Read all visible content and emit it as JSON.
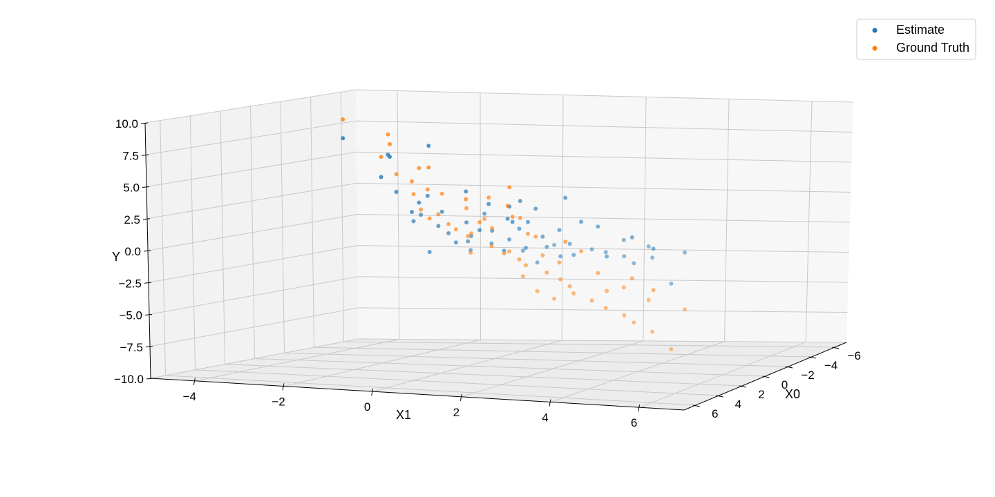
{
  "chart_data": {
    "type": "scatter",
    "projection": "3d",
    "title": "",
    "xlabel": "X0",
    "ylabel": "X1",
    "zlabel": "Y",
    "xlim": [
      -7,
      7
    ],
    "ylim": [
      -5,
      7
    ],
    "zlim": [
      -10,
      10
    ],
    "xticks": [
      "−6",
      "−4",
      "−2",
      "0",
      "2",
      "4",
      "6"
    ],
    "yticks": [
      "−4",
      "−2",
      "0",
      "2",
      "4",
      "6"
    ],
    "zticks": [
      "−10.0",
      "−7.5",
      "−5.0",
      "−2.5",
      "0.0",
      "2.5",
      "5.0",
      "7.5",
      "10.0"
    ],
    "grid": true,
    "legend_position": "top-right",
    "series": [
      {
        "name": "Estimate",
        "color": "#1f77b4",
        "points": [
          [
            -3.7,
            -4.2,
            6.8
          ],
          [
            -3.2,
            -2.9,
            5.5
          ],
          [
            -2.6,
            -2.9,
            4.0
          ],
          [
            -1.6,
            -2.4,
            6.0
          ],
          [
            -1.8,
            -1.5,
            6.7
          ],
          [
            -1.0,
            -2.0,
            3.2
          ],
          [
            -1.2,
            -1.7,
            1.6
          ],
          [
            -0.5,
            -1.3,
            2.5
          ],
          [
            -0.2,
            -1.0,
            3.1
          ],
          [
            0.2,
            -1.2,
            1.2
          ],
          [
            0.6,
            -0.9,
            1.8
          ],
          [
            0.3,
            -0.5,
            2.0
          ],
          [
            0.9,
            -0.6,
            -1.0
          ],
          [
            -0.2,
            -0.1,
            3.5
          ],
          [
            1.2,
            -0.3,
            1.1
          ],
          [
            1.4,
            0.0,
            0.6
          ],
          [
            0.7,
            0.2,
            1.3
          ],
          [
            1.8,
            0.3,
            0.0
          ],
          [
            1.0,
            0.6,
            0.8
          ],
          [
            2.2,
            0.7,
            0.2
          ],
          [
            1.6,
            0.9,
            2.2
          ],
          [
            2.0,
            1.2,
            1.0
          ],
          [
            2.7,
            1.4,
            0.2
          ],
          [
            2.4,
            1.6,
            -0.4
          ],
          [
            3.0,
            1.9,
            0.6
          ],
          [
            1.5,
            1.7,
            3.2
          ],
          [
            2.9,
            2.1,
            1.4
          ],
          [
            2.3,
            2.3,
            2.8
          ],
          [
            3.4,
            2.4,
            0.1
          ],
          [
            3.1,
            2.7,
            0.9
          ],
          [
            3.8,
            3.0,
            0.3
          ],
          [
            3.5,
            3.2,
            1.5
          ],
          [
            4.1,
            3.4,
            -0.3
          ],
          [
            2.0,
            2.9,
            3.6
          ],
          [
            4.4,
            3.7,
            0.7
          ],
          [
            4.8,
            3.9,
            0.0
          ],
          [
            3.9,
            4.2,
            1.9
          ],
          [
            5.1,
            4.4,
            0.5
          ],
          [
            4.6,
            4.6,
            -0.1
          ],
          [
            5.4,
            4.8,
            0.4
          ],
          [
            5.0,
            5.1,
            1.2
          ],
          [
            5.7,
            5.3,
            0.2
          ],
          [
            6.0,
            5.6,
            -0.2
          ],
          [
            5.5,
            5.8,
            0.9
          ],
          [
            6.3,
            6.1,
            0.3
          ],
          [
            6.2,
            6.5,
            -1.5
          ],
          [
            5.8,
            6.7,
            0.6
          ],
          [
            0.0,
            0.5,
            2.6
          ],
          [
            0.5,
            1.1,
            1.6
          ],
          [
            -0.6,
            0.8,
            2.3
          ],
          [
            1.1,
            1.4,
            1.5
          ],
          [
            2.6,
            0.9,
            0.7
          ],
          [
            3.3,
            1.1,
            -0.2
          ],
          [
            1.9,
            2.0,
            1.7
          ],
          [
            4.3,
            2.6,
            0.1
          ],
          [
            2.8,
            3.5,
            2.0
          ],
          [
            4.9,
            3.1,
            -0.6
          ],
          [
            3.6,
            4.9,
            1.1
          ],
          [
            5.3,
            3.6,
            0.8
          ],
          [
            4.0,
            5.5,
            0.4
          ]
        ]
      },
      {
        "name": "Ground Truth",
        "color": "#ff7f0e",
        "points": [
          [
            -3.7,
            -4.2,
            8.3
          ],
          [
            -3.2,
            -2.9,
            6.5
          ],
          [
            -2.6,
            -2.9,
            5.6
          ],
          [
            -1.6,
            -2.4,
            7.6
          ],
          [
            -1.8,
            -1.5,
            5.0
          ],
          [
            -1.0,
            -2.0,
            4.6
          ],
          [
            -1.2,
            -1.7,
            4.0
          ],
          [
            -0.5,
            -1.3,
            5.2
          ],
          [
            -0.2,
            -1.0,
            3.6
          ],
          [
            0.2,
            -1.2,
            3.3
          ],
          [
            0.6,
            -0.9,
            2.2
          ],
          [
            0.3,
            -0.5,
            3.4
          ],
          [
            0.9,
            -0.6,
            1.6
          ],
          [
            -0.2,
            -0.1,
            2.9
          ],
          [
            1.2,
            -0.3,
            2.0
          ],
          [
            1.4,
            0.0,
            1.3
          ],
          [
            0.7,
            0.2,
            2.4
          ],
          [
            1.8,
            0.3,
            1.0
          ],
          [
            1.0,
            0.6,
            1.4
          ],
          [
            2.2,
            0.7,
            0.6
          ],
          [
            1.6,
            0.9,
            1.8
          ],
          [
            2.0,
            1.2,
            1.2
          ],
          [
            2.7,
            1.4,
            0.0
          ],
          [
            2.4,
            1.6,
            -0.6
          ],
          [
            3.0,
            1.9,
            -0.3
          ],
          [
            1.5,
            1.7,
            1.9
          ],
          [
            2.9,
            2.1,
            -0.9
          ],
          [
            2.3,
            2.3,
            0.7
          ],
          [
            3.4,
            2.4,
            -1.2
          ],
          [
            3.1,
            2.7,
            -0.5
          ],
          [
            3.8,
            3.0,
            -1.6
          ],
          [
            3.5,
            3.2,
            -0.9
          ],
          [
            4.1,
            3.4,
            -2.0
          ],
          [
            2.0,
            2.9,
            0.3
          ],
          [
            4.4,
            3.7,
            -2.4
          ],
          [
            4.8,
            3.9,
            -2.8
          ],
          [
            3.9,
            4.2,
            -1.5
          ],
          [
            5.1,
            4.4,
            -3.2
          ],
          [
            4.6,
            4.6,
            -2.6
          ],
          [
            5.4,
            4.8,
            -3.6
          ],
          [
            5.0,
            5.1,
            -2.2
          ],
          [
            5.7,
            5.3,
            -4.0
          ],
          [
            6.0,
            5.6,
            -4.4
          ],
          [
            5.5,
            5.8,
            -2.9
          ],
          [
            6.3,
            6.1,
            -4.9
          ],
          [
            6.2,
            6.5,
            -6.1
          ],
          [
            5.8,
            6.7,
            -3.4
          ],
          [
            0.0,
            0.5,
            3.1
          ],
          [
            0.5,
            1.1,
            2.6
          ],
          [
            -0.6,
            0.8,
            3.8
          ],
          [
            1.1,
            1.4,
            1.9
          ],
          [
            2.6,
            0.9,
            0.9
          ],
          [
            3.3,
            1.1,
            -0.4
          ],
          [
            1.9,
            2.0,
            0.8
          ],
          [
            4.3,
            2.6,
            -1.8
          ],
          [
            2.8,
            3.5,
            -0.2
          ],
          [
            4.9,
            3.1,
            -2.7
          ],
          [
            3.6,
            4.9,
            -1.9
          ],
          [
            5.3,
            3.6,
            -3.1
          ],
          [
            4.0,
            5.5,
            -2.6
          ]
        ]
      }
    ]
  }
}
